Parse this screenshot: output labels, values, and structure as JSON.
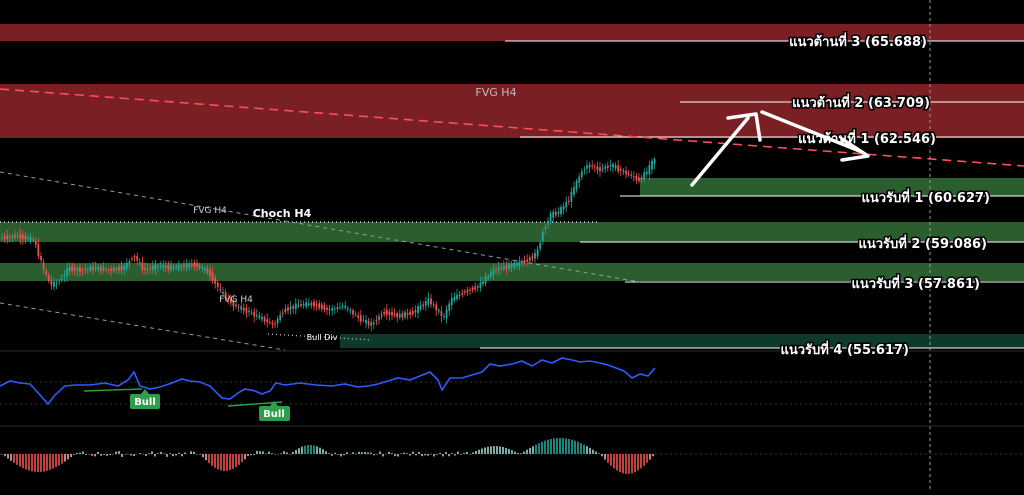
{
  "chart_data": {
    "type": "candlestick",
    "price_scale_reference": [
      {
        "label": "แนวต้านที่ 3 (65.688)",
        "value": 65.688
      },
      {
        "label": "แนวต้านที่ 2 (63.709)",
        "value": 63.709
      },
      {
        "label": "แนวต้านที่ 1 (62.546)",
        "value": 62.546
      },
      {
        "label": "แนวรับที่ 1 (60.627)",
        "value": 60.627
      },
      {
        "label": "แนวรับที่ 2 (59.086)",
        "value": 59.086
      },
      {
        "label": "แนวรับที่ 3 (57.861)",
        "value": 57.861
      },
      {
        "label": "แนวรับที่ 4 (55.617)",
        "value": 55.617
      }
    ],
    "zones": [
      {
        "label": "",
        "kind": "resistance",
        "from": 65.5,
        "to": 66.0
      },
      {
        "label": "FVG H4",
        "kind": "fvg-bear",
        "from": 62.55,
        "to": 63.95
      },
      {
        "label": "",
        "kind": "support",
        "from": 60.55,
        "to": 60.95
      },
      {
        "label": "",
        "kind": "support",
        "from": 59.05,
        "to": 59.55
      },
      {
        "label": "",
        "kind": "support",
        "from": 57.82,
        "to": 58.25
      },
      {
        "label": "",
        "kind": "support-light",
        "from": 55.45,
        "to": 55.8
      }
    ],
    "annotations": [
      {
        "text": "FVG H4",
        "kind": "zone-label"
      },
      {
        "text": "FVG H4",
        "kind": "upper-fvg"
      },
      {
        "text": "Choch H4",
        "kind": "structure"
      },
      {
        "text": "FVG H4",
        "kind": "lower-fvg"
      },
      {
        "text": "Bull Div",
        "kind": "divergence"
      }
    ],
    "oscillator_labels": [
      "Bull",
      "Bull"
    ],
    "grid": false,
    "price_range": [
      54.9,
      66.6
    ]
  },
  "colors": {
    "background": "#000000",
    "resistance_zone": "#7a1f24",
    "support_zone": "#2b5e2e",
    "support_light": "#0f3a2a",
    "bull_candle": "#26a69a",
    "bear_candle": "#ef5350",
    "oscillator_line": "#2f5bff",
    "bull_badge": "#2e9e4a",
    "arrow": "#ffffff"
  }
}
